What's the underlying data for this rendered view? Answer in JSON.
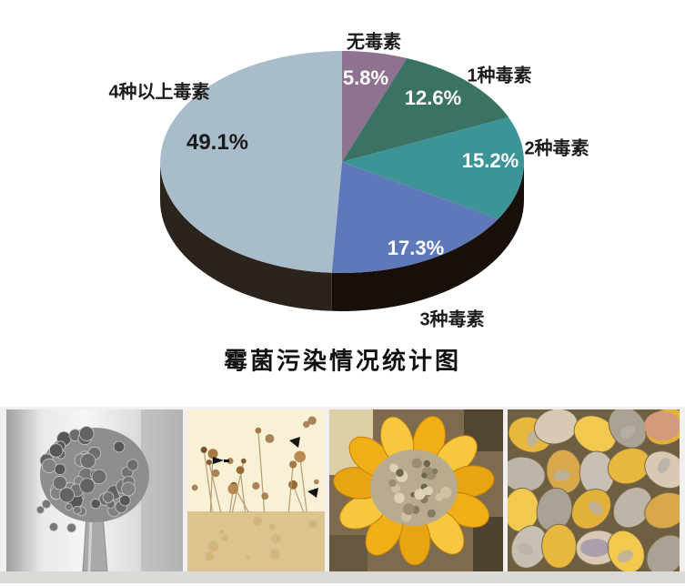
{
  "chart_data": {
    "type": "pie",
    "projection": "3d",
    "title": "霉菌污染情况统计图",
    "unit": "%",
    "start_angle_deg": 0,
    "direction": "clockwise",
    "legend_position": "labels-around-pie",
    "slices": [
      {
        "label": "无毒素",
        "value": 5.8,
        "pct_label": "5.8%",
        "color": "#8f7190",
        "pct_text_color": "#ffffff"
      },
      {
        "label": "1种毒素",
        "value": 12.6,
        "pct_label": "12.6%",
        "color": "#3a7264",
        "pct_text_color": "#ffffff"
      },
      {
        "label": "2种毒素",
        "value": 15.2,
        "pct_label": "15.2%",
        "color": "#3d9496",
        "pct_text_color": "#ffffff"
      },
      {
        "label": "3种毒素",
        "value": 17.3,
        "pct_label": "17.3%",
        "color": "#5e78ba",
        "pct_text_color": "#ffffff"
      },
      {
        "label": "4种以上毒素",
        "value": 49.1,
        "pct_label": "49.1%",
        "color": "#a8bcc9",
        "pct_text_color": "#1a1a1a"
      }
    ],
    "side_colors": {
      "left": "#2b241c",
      "right": "#17100a"
    }
  },
  "photos": [
    {
      "name": "aspergillus-sem-micrograph"
    },
    {
      "name": "mold-spores-light-micrograph"
    },
    {
      "name": "moldy-corn-cob"
    },
    {
      "name": "moldy-corn-kernels"
    }
  ]
}
